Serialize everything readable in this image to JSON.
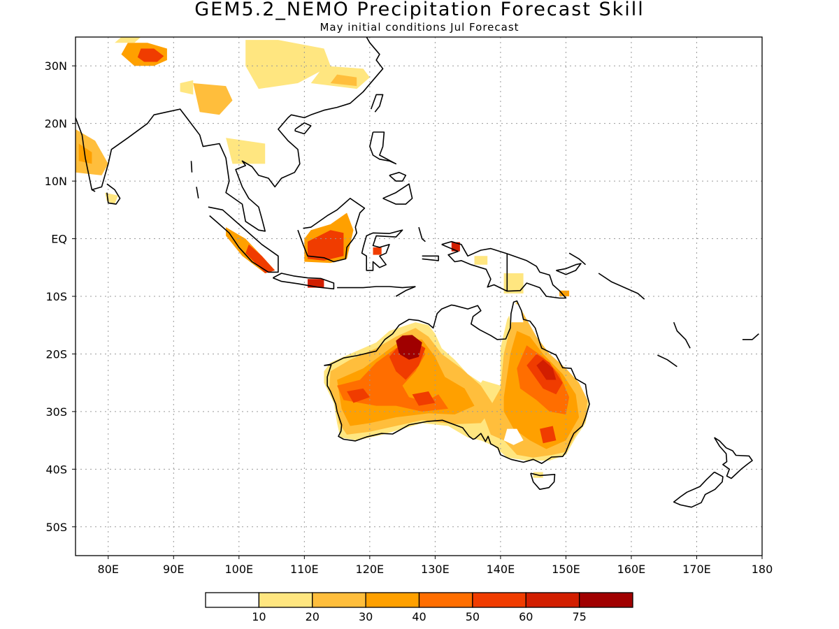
{
  "title": "GEM5.2_NEMO Precipitation Forecast Skill",
  "subtitle": "May initial conditions  Jul Forecast",
  "map": {
    "lon_range": [
      75,
      180
    ],
    "lat_range": [
      -55,
      35
    ],
    "lon_ticks": [
      "80E",
      "90E",
      "100E",
      "110E",
      "120E",
      "130E",
      "140E",
      "150E",
      "160E",
      "170E",
      "180"
    ],
    "lat_ticks": [
      "30N",
      "20N",
      "10N",
      "EQ",
      "10S",
      "20S",
      "30S",
      "40S",
      "50S"
    ],
    "gridlines": "dotted"
  },
  "colorbar": {
    "labels": [
      "10",
      "20",
      "30",
      "40",
      "50",
      "60",
      "75"
    ],
    "colors": [
      "#ffffff",
      "#ffe680",
      "#ffbe3c",
      "#ffa000",
      "#ff6e00",
      "#f03c00",
      "#d21e00",
      "#a00000"
    ]
  },
  "skill_regions": [
    {
      "name": "himalaya-north",
      "level": 3,
      "lonlat": [
        [
          82,
          32
        ],
        [
          84,
          30
        ],
        [
          87,
          30
        ],
        [
          89,
          31
        ],
        [
          89,
          33
        ],
        [
          86,
          34
        ],
        [
          83,
          34
        ]
      ]
    },
    {
      "name": "himalaya-north-inner",
      "level": 5,
      "lonlat": [
        [
          84.5,
          31.5
        ],
        [
          85.5,
          30.7
        ],
        [
          87.5,
          30.7
        ],
        [
          88.5,
          31.7
        ],
        [
          87,
          33
        ],
        [
          85,
          33
        ]
      ]
    },
    {
      "name": "tibet-east",
      "level": 1,
      "lonlat": [
        [
          101,
          34.5
        ],
        [
          106,
          34.5
        ],
        [
          113,
          33
        ],
        [
          114,
          30
        ],
        [
          109,
          27
        ],
        [
          103,
          26
        ],
        [
          101,
          30
        ]
      ]
    },
    {
      "name": "china-south",
      "level": 1,
      "lonlat": [
        [
          111,
          27
        ],
        [
          118,
          26
        ],
        [
          120,
          28
        ],
        [
          119,
          29.5
        ],
        [
          113,
          30
        ]
      ]
    },
    {
      "name": "china-south-inner",
      "level": 2,
      "lonlat": [
        [
          114,
          27
        ],
        [
          118,
          26.5
        ],
        [
          118,
          28
        ],
        [
          115,
          28.5
        ]
      ]
    },
    {
      "name": "burma",
      "level": 2,
      "lonlat": [
        [
          93,
          27
        ],
        [
          98,
          26.5
        ],
        [
          99,
          24
        ],
        [
          97,
          21.5
        ],
        [
          94,
          22
        ]
      ]
    },
    {
      "name": "burma-small",
      "level": 1,
      "lonlat": [
        [
          91,
          25.5
        ],
        [
          93,
          25
        ],
        [
          93,
          27.5
        ],
        [
          91,
          27
        ]
      ]
    },
    {
      "name": "tibet-west",
      "level": 1,
      "lonlat": [
        [
          81,
          34
        ],
        [
          84,
          34
        ],
        [
          85,
          35
        ],
        [
          82,
          35
        ]
      ]
    },
    {
      "name": "india-west",
      "level": 2,
      "lonlat": [
        [
          75,
          19
        ],
        [
          78,
          17
        ],
        [
          80,
          13
        ],
        [
          79,
          11
        ],
        [
          75,
          11.5
        ]
      ]
    },
    {
      "name": "india-west-inner",
      "level": 3,
      "lonlat": [
        [
          75.5,
          16.5
        ],
        [
          77.5,
          15
        ],
        [
          77.5,
          13
        ],
        [
          75.5,
          13.5
        ]
      ]
    },
    {
      "name": "sri-lanka",
      "level": 1,
      "lonlat": [
        [
          79.5,
          8
        ],
        [
          81.5,
          7.5
        ],
        [
          81,
          6
        ],
        [
          79.8,
          6.5
        ]
      ]
    },
    {
      "name": "thailand",
      "level": 1,
      "lonlat": [
        [
          98,
          17.5
        ],
        [
          104,
          16.5
        ],
        [
          104,
          13
        ],
        [
          99,
          13
        ]
      ]
    },
    {
      "name": "sumatra",
      "level": 3,
      "lonlat": [
        [
          98,
          2
        ],
        [
          101,
          0
        ],
        [
          103.5,
          -3
        ],
        [
          105.5,
          -5.5
        ],
        [
          104,
          -6
        ],
        [
          100.5,
          -3
        ],
        [
          98,
          0.5
        ]
      ]
    },
    {
      "name": "sumatra-inner",
      "level": 5,
      "lonlat": [
        [
          101.5,
          -1
        ],
        [
          103.5,
          -3
        ],
        [
          105.5,
          -5.5
        ],
        [
          104,
          -6
        ],
        [
          101,
          -2.5
        ]
      ]
    },
    {
      "name": "borneo",
      "level": 3,
      "lonlat": [
        [
          110,
          -4
        ],
        [
          110,
          0
        ],
        [
          111,
          1.5
        ],
        [
          114,
          2.5
        ],
        [
          116.5,
          4.5
        ],
        [
          117.5,
          1.5
        ],
        [
          116.5,
          -3.5
        ],
        [
          114,
          -4.2
        ]
      ]
    },
    {
      "name": "borneo-inner",
      "level": 5,
      "lonlat": [
        [
          110.5,
          -3.5
        ],
        [
          110.5,
          -0.5
        ],
        [
          114,
          1.5
        ],
        [
          116,
          1
        ],
        [
          116,
          -3
        ],
        [
          113,
          -3.8
        ]
      ]
    },
    {
      "name": "java-spot",
      "level": 6,
      "lonlat": [
        [
          110.5,
          -7
        ],
        [
          113,
          -7
        ],
        [
          113,
          -8.5
        ],
        [
          110.5,
          -8.5
        ]
      ]
    },
    {
      "name": "sulawesi-spot",
      "level": 5,
      "lonlat": [
        [
          120.5,
          -1.5
        ],
        [
          121.8,
          -1.5
        ],
        [
          121.8,
          -2.8
        ],
        [
          120.5,
          -2.8
        ]
      ]
    },
    {
      "name": "new-guinea-west",
      "level": 6,
      "lonlat": [
        [
          132.5,
          -0.6
        ],
        [
          133.8,
          -0.6
        ],
        [
          133.8,
          -2.2
        ],
        [
          132.5,
          -2.2
        ]
      ]
    },
    {
      "name": "new-guinea-mid",
      "level": 1,
      "lonlat": [
        [
          136,
          -3
        ],
        [
          138,
          -3
        ],
        [
          138,
          -4.5
        ],
        [
          136,
          -4.5
        ]
      ]
    },
    {
      "name": "new-guinea-south",
      "level": 1,
      "lonlat": [
        [
          140.5,
          -6
        ],
        [
          143.5,
          -6
        ],
        [
          143.5,
          -9.5
        ],
        [
          140.5,
          -9.5
        ]
      ]
    },
    {
      "name": "new-guinea-east",
      "level": 3,
      "lonlat": [
        [
          149,
          -9
        ],
        [
          150.5,
          -9
        ],
        [
          150.5,
          -10
        ],
        [
          149,
          -10
        ]
      ]
    },
    {
      "name": "aus-main",
      "level": 1,
      "lonlat": [
        [
          113,
          -23
        ],
        [
          114,
          -21.5
        ],
        [
          117,
          -20
        ],
        [
          121,
          -18
        ],
        [
          123,
          -16
        ],
        [
          127,
          -14.5
        ],
        [
          129,
          -15
        ],
        [
          130,
          -16.5
        ],
        [
          131,
          -19
        ],
        [
          133,
          -21
        ],
        [
          135,
          -22.5
        ],
        [
          137,
          -24.5
        ],
        [
          140,
          -25.5
        ],
        [
          140,
          -19
        ],
        [
          141,
          -14
        ],
        [
          142.5,
          -10.8
        ],
        [
          144,
          -14
        ],
        [
          145,
          -17
        ],
        [
          147,
          -19.5
        ],
        [
          150,
          -22.5
        ],
        [
          152,
          -25
        ],
        [
          153.5,
          -28.5
        ],
        [
          153,
          -32
        ],
        [
          151.5,
          -34.5
        ],
        [
          150,
          -37.5
        ],
        [
          147.5,
          -38.5
        ],
        [
          144,
          -38.5
        ],
        [
          141,
          -38
        ],
        [
          139,
          -36
        ],
        [
          137,
          -35
        ],
        [
          135,
          -34.5
        ],
        [
          132,
          -32.5
        ],
        [
          128,
          -32
        ],
        [
          125,
          -33
        ],
        [
          122,
          -34
        ],
        [
          118,
          -35
        ],
        [
          115.5,
          -34.5
        ],
        [
          115,
          -32
        ],
        [
          114.5,
          -28.5
        ],
        [
          113,
          -25
        ]
      ]
    },
    {
      "name": "aus-west",
      "level": 2,
      "lonlat": [
        [
          114,
          -23
        ],
        [
          117,
          -21
        ],
        [
          121,
          -19
        ],
        [
          124,
          -17
        ],
        [
          127,
          -15.5
        ],
        [
          129,
          -17
        ],
        [
          131,
          -20
        ],
        [
          134,
          -22.5
        ],
        [
          137,
          -25.5
        ],
        [
          139,
          -29
        ],
        [
          137,
          -32
        ],
        [
          133,
          -32.2
        ],
        [
          128,
          -31.5
        ],
        [
          124,
          -32.5
        ],
        [
          120,
          -33.5
        ],
        [
          116.5,
          -34
        ],
        [
          115.3,
          -32
        ],
        [
          114.8,
          -28.5
        ],
        [
          113.8,
          -26
        ]
      ]
    },
    {
      "name": "aus-west-core",
      "level": 3,
      "lonlat": [
        [
          115,
          -24.5
        ],
        [
          119,
          -22.5
        ],
        [
          122,
          -20
        ],
        [
          125,
          -17.5
        ],
        [
          128,
          -17.5
        ],
        [
          130,
          -20.5
        ],
        [
          131.5,
          -24
        ],
        [
          134.5,
          -26
        ],
        [
          136,
          -29
        ],
        [
          133,
          -30.5
        ],
        [
          129,
          -30.3
        ],
        [
          124,
          -31
        ],
        [
          120,
          -32
        ],
        [
          117,
          -32.5
        ],
        [
          115.7,
          -29.5
        ]
      ]
    },
    {
      "name": "aus-west-high",
      "level": 4,
      "lonlat": [
        [
          115,
          -25.5
        ],
        [
          118.5,
          -24.5
        ],
        [
          121,
          -21.5
        ],
        [
          124,
          -19
        ],
        [
          127,
          -18
        ],
        [
          128.5,
          -20
        ],
        [
          127,
          -23
        ],
        [
          125,
          -25.5
        ],
        [
          126,
          -27.5
        ],
        [
          128.5,
          -28.3
        ],
        [
          130.5,
          -27
        ],
        [
          132,
          -29.5
        ],
        [
          128,
          -30
        ],
        [
          124,
          -29
        ],
        [
          121,
          -29
        ],
        [
          118.5,
          -28.5
        ],
        [
          116,
          -28
        ]
      ]
    },
    {
      "name": "aus-west-hotspot",
      "level": 5,
      "lonlat": [
        [
          123,
          -20.5
        ],
        [
          124.5,
          -18.5
        ],
        [
          126.5,
          -17.5
        ],
        [
          128.5,
          -19
        ],
        [
          127.5,
          -22
        ],
        [
          125.5,
          -24.5
        ],
        [
          124,
          -23
        ]
      ]
    },
    {
      "name": "aus-kimberley",
      "level": 7,
      "lonlat": [
        [
          124,
          -17.7
        ],
        [
          125,
          -16.8
        ],
        [
          126.5,
          -16.7
        ],
        [
          128,
          -18
        ],
        [
          127.5,
          -20.5
        ],
        [
          126,
          -21
        ],
        [
          124.5,
          -20
        ]
      ]
    },
    {
      "name": "aus-sw-spot",
      "level": 5,
      "lonlat": [
        [
          116.5,
          -26.5
        ],
        [
          119,
          -26
        ],
        [
          120,
          -27.5
        ],
        [
          117.5,
          -28.5
        ]
      ]
    },
    {
      "name": "aus-mid-spot",
      "level": 5,
      "lonlat": [
        [
          126.5,
          -27
        ],
        [
          129,
          -26.5
        ],
        [
          130,
          -28.5
        ],
        [
          127.5,
          -29
        ]
      ]
    },
    {
      "name": "aus-east",
      "level": 2,
      "lonlat": [
        [
          140,
          -26
        ],
        [
          140.5,
          -20
        ],
        [
          141.5,
          -15.5
        ],
        [
          142.5,
          -11
        ],
        [
          144,
          -14
        ],
        [
          145.5,
          -17
        ],
        [
          147.5,
          -20
        ],
        [
          150,
          -22.5
        ],
        [
          152,
          -25
        ],
        [
          153.3,
          -28
        ],
        [
          153,
          -31.5
        ],
        [
          151.5,
          -34
        ],
        [
          150,
          -37
        ],
        [
          148,
          -37.5
        ],
        [
          145,
          -38
        ],
        [
          142.5,
          -37.5
        ],
        [
          140.5,
          -35
        ],
        [
          138.5,
          -34
        ],
        [
          137.5,
          -31
        ]
      ]
    },
    {
      "name": "aus-east-core",
      "level": 3,
      "lonlat": [
        [
          140.5,
          -27.5
        ],
        [
          141.5,
          -20
        ],
        [
          142.5,
          -16
        ],
        [
          144.5,
          -17
        ],
        [
          146.5,
          -20
        ],
        [
          149.5,
          -23.5
        ],
        [
          151.5,
          -27
        ],
        [
          152,
          -31
        ],
        [
          150,
          -35
        ],
        [
          147,
          -36.5
        ],
        [
          144.5,
          -35
        ],
        [
          142,
          -33
        ],
        [
          140.5,
          -30
        ]
      ]
    },
    {
      "name": "aus-east-high",
      "level": 4,
      "lonlat": [
        [
          142.5,
          -22.5
        ],
        [
          144,
          -18.5
        ],
        [
          146.5,
          -20.5
        ],
        [
          149,
          -23.5
        ],
        [
          150.5,
          -27.5
        ],
        [
          150,
          -30.5
        ],
        [
          147.5,
          -30
        ],
        [
          145.5,
          -28
        ],
        [
          143,
          -26
        ]
      ]
    },
    {
      "name": "aus-east-hotspot",
      "level": 5,
      "lonlat": [
        [
          144,
          -22
        ],
        [
          145.5,
          -20
        ],
        [
          147.5,
          -21.5
        ],
        [
          149.5,
          -25
        ],
        [
          148.5,
          -27
        ],
        [
          146.5,
          -26
        ]
      ]
    },
    {
      "name": "aus-east-core-spot",
      "level": 6,
      "lonlat": [
        [
          145.5,
          -22
        ],
        [
          146.5,
          -21
        ],
        [
          148,
          -22.5
        ],
        [
          148.5,
          -24.5
        ],
        [
          147,
          -24.5
        ]
      ]
    },
    {
      "name": "aus-se-spot",
      "level": 5,
      "lonlat": [
        [
          146,
          -33
        ],
        [
          148,
          -32.5
        ],
        [
          148.5,
          -35
        ],
        [
          146.5,
          -35.5
        ]
      ]
    },
    {
      "name": "tasmania",
      "level": 1,
      "lonlat": [
        [
          145,
          -40.5
        ],
        [
          146.5,
          -40.5
        ],
        [
          146.5,
          -41.5
        ],
        [
          145,
          -41.5
        ]
      ]
    }
  ],
  "skill_holes": [
    {
      "name": "aus-interior-low",
      "lonlat": [
        [
          131.5,
          -15
        ],
        [
          134.5,
          -15
        ],
        [
          135.5,
          -18
        ],
        [
          136.5,
          -20.5
        ],
        [
          138.5,
          -22.5
        ],
        [
          137,
          -25
        ],
        [
          135,
          -23.5
        ],
        [
          133,
          -21
        ],
        [
          131.5,
          -18
        ]
      ]
    },
    {
      "name": "aus-nt-low",
      "lonlat": [
        [
          134,
          -21
        ],
        [
          137.5,
          -21.5
        ],
        [
          138,
          -23.5
        ],
        [
          136,
          -23.5
        ]
      ]
    },
    {
      "name": "aus-sa-low",
      "lonlat": [
        [
          141,
          -33
        ],
        [
          142.5,
          -33
        ],
        [
          143.5,
          -35
        ],
        [
          142,
          -35.8
        ],
        [
          140.5,
          -35
        ]
      ]
    },
    {
      "name": "aus-qld-low",
      "lonlat": [
        [
          141,
          -11
        ],
        [
          143,
          -11.5
        ],
        [
          143.5,
          -14.5
        ],
        [
          141.5,
          -14.5
        ]
      ]
    }
  ]
}
